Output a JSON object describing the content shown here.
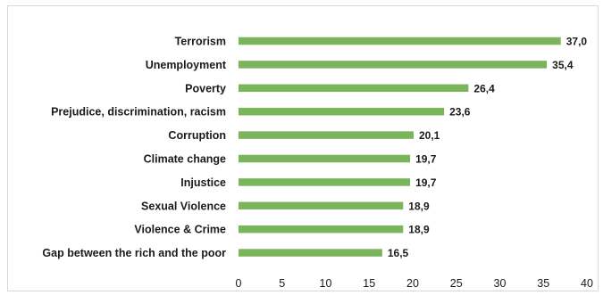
{
  "chart_data": {
    "type": "bar",
    "orientation": "horizontal",
    "title": "",
    "xlabel": "",
    "ylabel": "",
    "categories": [
      "Terrorism",
      "Unemployment",
      "Poverty",
      "Prejudice, discrimination, racism",
      "Corruption",
      "Climate change",
      "Injustice",
      "Sexual Violence",
      "Violence & Crime",
      "Gap between the rich and the poor"
    ],
    "values": [
      37.0,
      35.4,
      26.4,
      23.6,
      20.1,
      19.7,
      19.7,
      18.9,
      18.9,
      16.5
    ],
    "value_labels": [
      "37,0",
      "35,4",
      "26,4",
      "23,6",
      "20,1",
      "19,7",
      "19,7",
      "18,9",
      "18,9",
      "16,5"
    ],
    "xlim": [
      0,
      40
    ],
    "xticks": [
      "0",
      "5",
      "10",
      "15",
      "20",
      "25",
      "30",
      "35",
      "40"
    ],
    "grid": false,
    "bar_color": "#7ab55c"
  }
}
